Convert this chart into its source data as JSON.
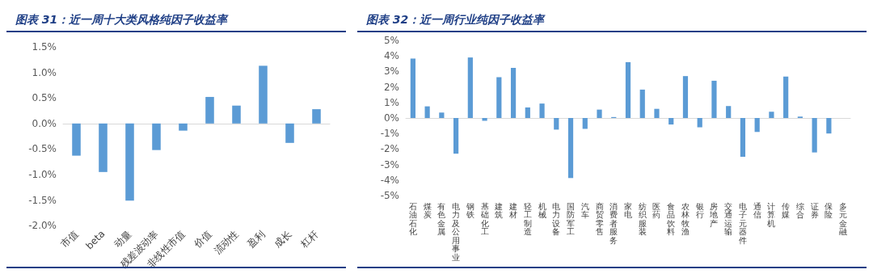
{
  "chart_data": [
    {
      "type": "bar",
      "title": "图表 31：近一周十大类风格纯因子收益率",
      "categories": [
        "市值",
        "beta",
        "动量",
        "残差波动率",
        "非线性市值",
        "价值",
        "流动性",
        "盈利",
        "成长",
        "杠杆"
      ],
      "values": [
        -0.63,
        -0.95,
        -1.51,
        -0.52,
        -0.14,
        0.52,
        0.35,
        1.13,
        -0.38,
        0.28
      ],
      "color": "#5b9bd5",
      "ylim": [
        -2,
        1.5
      ],
      "yticks": [
        {
          "value": -2,
          "label": "-2.0%"
        },
        {
          "value": -1.5,
          "label": "-1.5%"
        },
        {
          "value": -1,
          "label": "-1.0%"
        },
        {
          "value": -0.5,
          "label": "-0.5%"
        },
        {
          "value": 0,
          "label": "0.0%"
        },
        {
          "value": 0.5,
          "label": "0.5%"
        },
        {
          "value": 1,
          "label": "1.0%"
        },
        {
          "value": 1.5,
          "label": "1.5%"
        }
      ]
    },
    {
      "type": "bar",
      "title": "图表 32：近一周行业纯因子收益率",
      "categories": [
        "石油石化",
        "煤炭",
        "有色金属",
        "电力及公用事业",
        "钢铁",
        "基础化工",
        "建筑",
        "建材",
        "轻工制造",
        "机械",
        "电力设备",
        "国防军工",
        "汽车",
        "商贸零售",
        "消费者服务",
        "家电",
        "纺织服装",
        "医药",
        "食品饮料",
        "农林牧渔",
        "银行",
        "房地产",
        "交通运输",
        "电子元器件",
        "通信",
        "计算机",
        "传媒",
        "综合",
        "证券",
        "保险",
        "多元金融"
      ],
      "values": [
        3.83,
        0.75,
        0.35,
        -2.3,
        3.9,
        -0.18,
        2.63,
        3.23,
        0.68,
        0.93,
        -0.75,
        -3.87,
        -0.7,
        0.54,
        0.06,
        3.6,
        1.83,
        0.59,
        -0.42,
        2.7,
        -0.6,
        2.4,
        0.77,
        -2.5,
        -0.9,
        0.4,
        2.67,
        0.09,
        -2.22,
        -1.0,
        0
      ],
      "color": "#5b9bd5",
      "ylim": [
        -5,
        5
      ],
      "yticks": [
        {
          "value": -5,
          "label": "-5%"
        },
        {
          "value": -4,
          "label": "-4%"
        },
        {
          "value": -3,
          "label": "-3%"
        },
        {
          "value": -2,
          "label": "-2%"
        },
        {
          "value": -1,
          "label": "-1%"
        },
        {
          "value": 0,
          "label": "0%"
        },
        {
          "value": 1,
          "label": "1%"
        },
        {
          "value": 2,
          "label": "2%"
        },
        {
          "value": 3,
          "label": "3%"
        },
        {
          "value": 4,
          "label": "4%"
        },
        {
          "value": 5,
          "label": "5%"
        }
      ]
    }
  ]
}
